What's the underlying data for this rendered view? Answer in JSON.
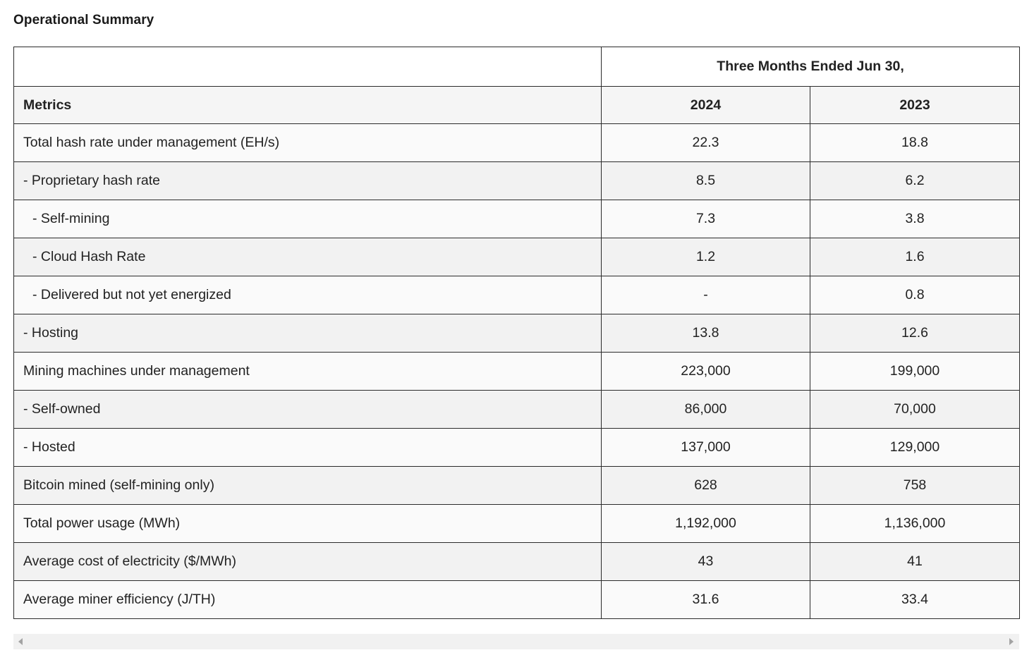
{
  "title": "Operational Summary",
  "table": {
    "period_header": "Three Months Ended Jun 30,",
    "col_label": "Metrics",
    "years": [
      "2024",
      "2023"
    ],
    "rows": [
      {
        "label": "Total hash rate under management (EH/s)",
        "v2024": "22.3",
        "v2023": "18.8",
        "indent": 0
      },
      {
        "label": "- Proprietary hash rate",
        "v2024": "8.5",
        "v2023": "6.2",
        "indent": 0
      },
      {
        "label": "- Self-mining",
        "v2024": "7.3",
        "v2023": "3.8",
        "indent": 1
      },
      {
        "label": "- Cloud Hash Rate",
        "v2024": "1.2",
        "v2023": "1.6",
        "indent": 1
      },
      {
        "label": "- Delivered but not yet energized",
        "v2024": "-",
        "v2023": "0.8",
        "indent": 1
      },
      {
        "label": "- Hosting",
        "v2024": "13.8",
        "v2023": "12.6",
        "indent": 0
      },
      {
        "label": "Mining machines under management",
        "v2024": "223,000",
        "v2023": "199,000",
        "indent": 0
      },
      {
        "label": "- Self-owned",
        "v2024": "86,000",
        "v2023": "70,000",
        "indent": 0
      },
      {
        "label": "- Hosted",
        "v2024": "137,000",
        "v2023": "129,000",
        "indent": 0
      },
      {
        "label": "Bitcoin mined (self-mining only)",
        "v2024": "628",
        "v2023": "758",
        "indent": 0
      },
      {
        "label": "Total power usage (MWh)",
        "v2024": "1,192,000",
        "v2023": "1,136,000",
        "indent": 0
      },
      {
        "label": "Average cost of electricity ($/MWh)",
        "v2024": "43",
        "v2023": "41",
        "indent": 0
      },
      {
        "label": "Average miner efficiency (J/TH)",
        "v2024": "31.6",
        "v2023": "33.4",
        "indent": 0
      }
    ]
  },
  "scrollbar": {
    "left_icon": "triangle-left-icon",
    "right_icon": "triangle-right-icon"
  }
}
